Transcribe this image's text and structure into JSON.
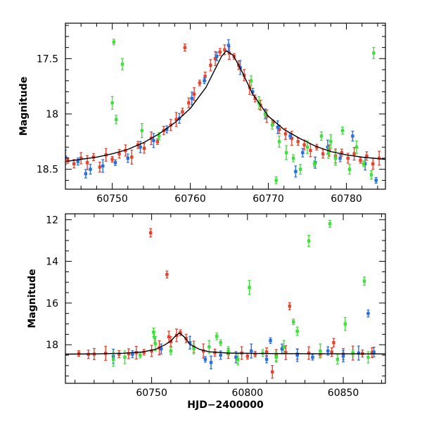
{
  "chart_data": [
    {
      "type": "scatter",
      "panel": "top",
      "xlabel": "",
      "ylabel": "Magnitude",
      "xlim": [
        60744,
        60785
      ],
      "ylim": [
        18.68,
        17.18
      ],
      "y_inverted": true,
      "x_ticks": [
        "60750",
        "60760",
        "60770",
        "60780"
      ],
      "y_ticks": [
        "17.5",
        "18",
        "18.5"
      ],
      "model_curve": {
        "color": "#000000",
        "points": [
          [
            60744,
            18.43
          ],
          [
            60746,
            18.41
          ],
          [
            60748,
            18.39
          ],
          [
            60750,
            18.36
          ],
          [
            60752,
            18.32
          ],
          [
            60754,
            18.26
          ],
          [
            60756,
            18.18
          ],
          [
            60758,
            18.08
          ],
          [
            60760,
            17.95
          ],
          [
            60762,
            17.76
          ],
          [
            60763,
            17.62
          ],
          [
            60764,
            17.48
          ],
          [
            60764.6,
            17.43
          ],
          [
            60765.5,
            17.47
          ],
          [
            60766.5,
            17.6
          ],
          [
            60768,
            17.82
          ],
          [
            60770,
            18.02
          ],
          [
            60772,
            18.14
          ],
          [
            60774,
            18.22
          ],
          [
            60776,
            18.29
          ],
          [
            60778,
            18.34
          ],
          [
            60780,
            18.37
          ],
          [
            60782,
            18.39
          ],
          [
            60785,
            18.41
          ]
        ]
      },
      "series": [
        {
          "name": "",
          "color": "#e8412c",
          "points": [
            [
              60744.3,
              18.42
            ],
            [
              60745.1,
              18.45
            ],
            [
              60746.0,
              18.4
            ],
            [
              60746.8,
              18.44
            ],
            [
              60747.6,
              18.39
            ],
            [
              60748.4,
              18.48
            ],
            [
              60749.2,
              18.37
            ],
            [
              60750.0,
              18.41
            ],
            [
              60750.9,
              18.36
            ],
            [
              60751.7,
              18.33
            ],
            [
              60752.5,
              18.39
            ],
            [
              60753.3,
              18.28
            ],
            [
              60754.1,
              18.31
            ],
            [
              60755.0,
              18.22
            ],
            [
              60755.8,
              18.25
            ],
            [
              60756.6,
              18.15
            ],
            [
              60757.5,
              18.1
            ],
            [
              60758.2,
              18.05
            ],
            [
              60759.0,
              17.98
            ],
            [
              60759.8,
              17.9
            ],
            [
              60760.5,
              17.82
            ],
            [
              60761.2,
              17.72
            ],
            [
              60761.9,
              17.66
            ],
            [
              60762.6,
              17.56
            ],
            [
              60763.2,
              17.5
            ],
            [
              60763.8,
              17.44
            ],
            [
              60764.4,
              17.42
            ],
            [
              60765.0,
              17.45
            ],
            [
              60765.6,
              17.48
            ],
            [
              60766.2,
              17.56
            ],
            [
              60766.9,
              17.65
            ],
            [
              60767.6,
              17.76
            ],
            [
              60768.3,
              17.86
            ],
            [
              60769.0,
              17.92
            ],
            [
              60769.8,
              18.02
            ],
            [
              60770.6,
              18.08
            ],
            [
              60771.4,
              18.14
            ],
            [
              60772.2,
              18.18
            ],
            [
              60773.0,
              18.22
            ],
            [
              60773.8,
              18.25
            ],
            [
              60774.6,
              18.28
            ],
            [
              60775.4,
              18.33
            ],
            [
              60776.2,
              18.3
            ],
            [
              60777.0,
              18.36
            ],
            [
              60777.8,
              18.33
            ],
            [
              60778.6,
              18.38
            ],
            [
              60779.4,
              18.35
            ],
            [
              60780.2,
              18.4
            ],
            [
              60781.0,
              18.36
            ],
            [
              60781.8,
              18.42
            ],
            [
              60782.6,
              18.38
            ],
            [
              60783.4,
              18.45
            ],
            [
              60784.2,
              18.4
            ],
            [
              60759.3,
              17.4
            ]
          ]
        },
        {
          "name": "",
          "color": "#2a6fdb",
          "points": [
            [
              60744.0,
              18.39
            ],
            [
              60745.6,
              18.43
            ],
            [
              60747.2,
              18.5
            ],
            [
              60748.8,
              18.47
            ],
            [
              60750.4,
              18.44
            ],
            [
              60752.0,
              18.4
            ],
            [
              60753.6,
              18.3
            ],
            [
              60755.3,
              18.24
            ],
            [
              60757.0,
              18.14
            ],
            [
              60758.6,
              18.04
            ],
            [
              60760.2,
              17.86
            ],
            [
              60761.8,
              17.7
            ],
            [
              60763.4,
              17.48
            ],
            [
              60764.9,
              17.38
            ],
            [
              60766.4,
              17.58
            ],
            [
              60768.0,
              17.8
            ],
            [
              60769.6,
              18.0
            ],
            [
              60771.2,
              18.12
            ],
            [
              60772.8,
              18.2
            ],
            [
              60774.4,
              18.35
            ],
            [
              60776.0,
              18.44
            ],
            [
              60777.6,
              18.3
            ],
            [
              60779.2,
              18.4
            ],
            [
              60780.8,
              18.2
            ],
            [
              60782.4,
              18.45
            ],
            [
              60783.8,
              18.6
            ],
            [
              60746.6,
              18.54
            ],
            [
              60773.5,
              18.52
            ]
          ]
        },
        {
          "name": "",
          "color": "#3fe03a",
          "points": [
            [
              60750.0,
              17.9
            ],
            [
              60750.2,
              17.35
            ],
            [
              60750.5,
              18.05
            ],
            [
              60751.3,
              17.55
            ],
            [
              60753.8,
              18.15
            ],
            [
              60756.0,
              18.2
            ],
            [
              60767.8,
              17.7
            ],
            [
              60768.8,
              17.9
            ],
            [
              60769.6,
              18.0
            ],
            [
              60770.5,
              18.1
            ],
            [
              60771.4,
              18.25
            ],
            [
              60772.3,
              18.35
            ],
            [
              60773.2,
              18.4
            ],
            [
              60774.1,
              18.5
            ],
            [
              60775.0,
              18.3
            ],
            [
              60775.9,
              18.45
            ],
            [
              60776.8,
              18.2
            ],
            [
              60777.7,
              18.35
            ],
            [
              60778.6,
              18.4
            ],
            [
              60779.5,
              18.15
            ],
            [
              60780.4,
              18.5
            ],
            [
              60781.3,
              18.3
            ],
            [
              60782.2,
              18.45
            ],
            [
              60783.2,
              18.55
            ],
            [
              60783.5,
              17.45
            ],
            [
              60778.0,
              18.25
            ],
            [
              60771.0,
              18.6
            ]
          ]
        }
      ]
    },
    {
      "type": "scatter",
      "panel": "bottom",
      "xlabel": "HJD−2400000",
      "ylabel": "Magnitude",
      "xlim": [
        60705,
        60872
      ],
      "ylim": [
        19.85,
        11.72
      ],
      "y_inverted": true,
      "x_ticks": [
        "60750",
        "60800",
        "60850"
      ],
      "y_ticks": [
        "12",
        "14",
        "16",
        "18"
      ],
      "model_curve": {
        "color": "#000000",
        "points": [
          [
            60705,
            18.45
          ],
          [
            60720,
            18.44
          ],
          [
            60735,
            18.41
          ],
          [
            60745,
            18.35
          ],
          [
            60752,
            18.22
          ],
          [
            60757,
            18.0
          ],
          [
            60760,
            17.82
          ],
          [
            60762,
            17.62
          ],
          [
            60764.5,
            17.43
          ],
          [
            60767,
            17.62
          ],
          [
            60770,
            17.98
          ],
          [
            60775,
            18.22
          ],
          [
            60780,
            18.34
          ],
          [
            60790,
            18.4
          ],
          [
            60805,
            18.42
          ],
          [
            60830,
            18.43
          ],
          [
            60872,
            18.44
          ]
        ]
      },
      "series": [
        {
          "name": "",
          "color": "#e8412c",
          "points": [
            [
              60712,
              18.42
            ],
            [
              60717,
              18.46
            ],
            [
              60720,
              18.45
            ],
            [
              60726,
              18.41
            ],
            [
              60733,
              18.45
            ],
            [
              60738,
              18.43
            ],
            [
              60742,
              18.38
            ],
            [
              60746,
              18.36
            ],
            [
              60749.5,
              12.63
            ],
            [
              60750,
              18.3
            ],
            [
              60754,
              18.15
            ],
            [
              60758,
              14.63
            ],
            [
              60760,
              17.85
            ],
            [
              60763,
              17.55
            ],
            [
              60765,
              17.42
            ],
            [
              60768,
              17.7
            ],
            [
              60772,
              18.1
            ],
            [
              60777,
              18.3
            ],
            [
              60783,
              18.38
            ],
            [
              60790,
              18.42
            ],
            [
              60797,
              18.4
            ],
            [
              60804,
              18.45
            ],
            [
              60810,
              18.35
            ],
            [
              60815,
              18.5
            ],
            [
              60820,
              18.38
            ],
            [
              60822,
              16.15
            ],
            [
              60826,
              18.45
            ],
            [
              60832,
              18.4
            ],
            [
              60838,
              18.48
            ],
            [
              60844,
              18.35
            ],
            [
              60850,
              18.45
            ],
            [
              60855,
              18.4
            ],
            [
              60860,
              18.42
            ],
            [
              60865,
              18.38
            ],
            [
              60813,
              19.3
            ],
            [
              60800,
              18.55
            ],
            [
              60845,
              17.9
            ],
            [
              60759,
              17.62
            ]
          ]
        },
        {
          "name": "",
          "color": "#2a6fdb",
          "points": [
            [
              60730,
              18.55
            ],
            [
              60740,
              18.45
            ],
            [
              60755,
              18.2
            ],
            [
              60770,
              17.9
            ],
            [
              60778,
              18.7
            ],
            [
              60786,
              18.5
            ],
            [
              60794,
              18.6
            ],
            [
              60802,
              18.3
            ],
            [
              60810,
              18.7
            ],
            [
              60818,
              18.2
            ],
            [
              60826,
              18.5
            ],
            [
              60834,
              18.6
            ],
            [
              60842,
              18.3
            ],
            [
              60850,
              18.55
            ],
            [
              60858,
              18.4
            ],
            [
              60863,
              16.5
            ],
            [
              60866,
              18.35
            ],
            [
              60781,
              18.85
            ],
            [
              60812,
              17.8
            ]
          ]
        },
        {
          "name": "",
          "color": "#3fe03a",
          "points": [
            [
              60736,
              18.6
            ],
            [
              60744,
              18.5
            ],
            [
              60751,
              17.4
            ],
            [
              60751.5,
              17.65
            ],
            [
              60752,
              17.95
            ],
            [
              60760,
              18.3
            ],
            [
              60772,
              18.2
            ],
            [
              60780,
              18.1
            ],
            [
              60786,
              17.9
            ],
            [
              60790,
              18.3
            ],
            [
              60795,
              18.7
            ],
            [
              60801,
              15.25
            ],
            [
              60808,
              18.4
            ],
            [
              60815,
              18.6
            ],
            [
              60819,
              18.1
            ],
            [
              60824,
              16.9
            ],
            [
              60826,
              17.35
            ],
            [
              60832,
              13.02
            ],
            [
              60838,
              18.3
            ],
            [
              60843,
              12.2
            ],
            [
              60847,
              18.7
            ],
            [
              60851,
              17.0
            ],
            [
              60855,
              18.4
            ],
            [
              60861,
              14.95
            ],
            [
              60863,
              18.6
            ],
            [
              60730,
              18.7
            ],
            [
              60784,
              17.6
            ]
          ]
        }
      ]
    }
  ]
}
